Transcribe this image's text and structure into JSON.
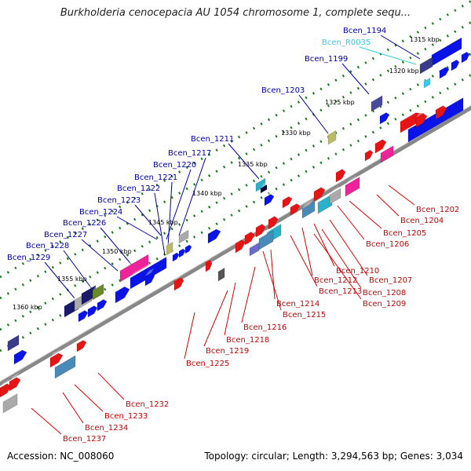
{
  "title": "Burkholderia cenocepacia AU 1054 chromosome 1, complete sequ...",
  "footer": {
    "accession": "Accession: NC_008060",
    "topology": "Topology: circular; Length: 3,294,563 bp; Genes: 3,034"
  },
  "colors": {
    "forward_gene": "#0a14e6",
    "reverse_gene": "#e61414",
    "rna_label": "#33ccee",
    "pseudo_pink": "#ee2299",
    "backbone": "#888888",
    "tick": "#1a7a1a"
  },
  "kbp_ticks": [
    "1315 kbp",
    "1320 kbp",
    "1325 kbp",
    "1330 kbp",
    "1335 kbp",
    "1340 kbp",
    "1345 kbp",
    "1350 kbp",
    "1355 kbp",
    "1360 kbp"
  ],
  "forward_labels": [
    "Bcen_1194",
    "Bcen_R0035",
    "Bcen_1199",
    "Bcen_1203",
    "Bcen_1211",
    "Bcen_1217",
    "Bcen_1220",
    "Bcen_1221",
    "Bcen_1222",
    "Bcen_1223",
    "Bcen_1224",
    "Bcen_1226",
    "Bcen_1227",
    "Bcen_1228",
    "Bcen_1229"
  ],
  "reverse_labels": [
    "Bcen_1202",
    "Bcen_1204",
    "Bcen_1205",
    "Bcen_1206",
    "Bcen_1210",
    "Bcen_1207",
    "Bcen_1212",
    "Bcen_1208",
    "Bcen_1213",
    "Bcen_1209",
    "Bcen_1214",
    "Bcen_1215",
    "Bcen_1216",
    "Bcen_1218",
    "Bcen_1219",
    "Bcen_1225",
    "Bcen_1232",
    "Bcen_1233",
    "Bcen_1234",
    "Bcen_1237"
  ]
}
